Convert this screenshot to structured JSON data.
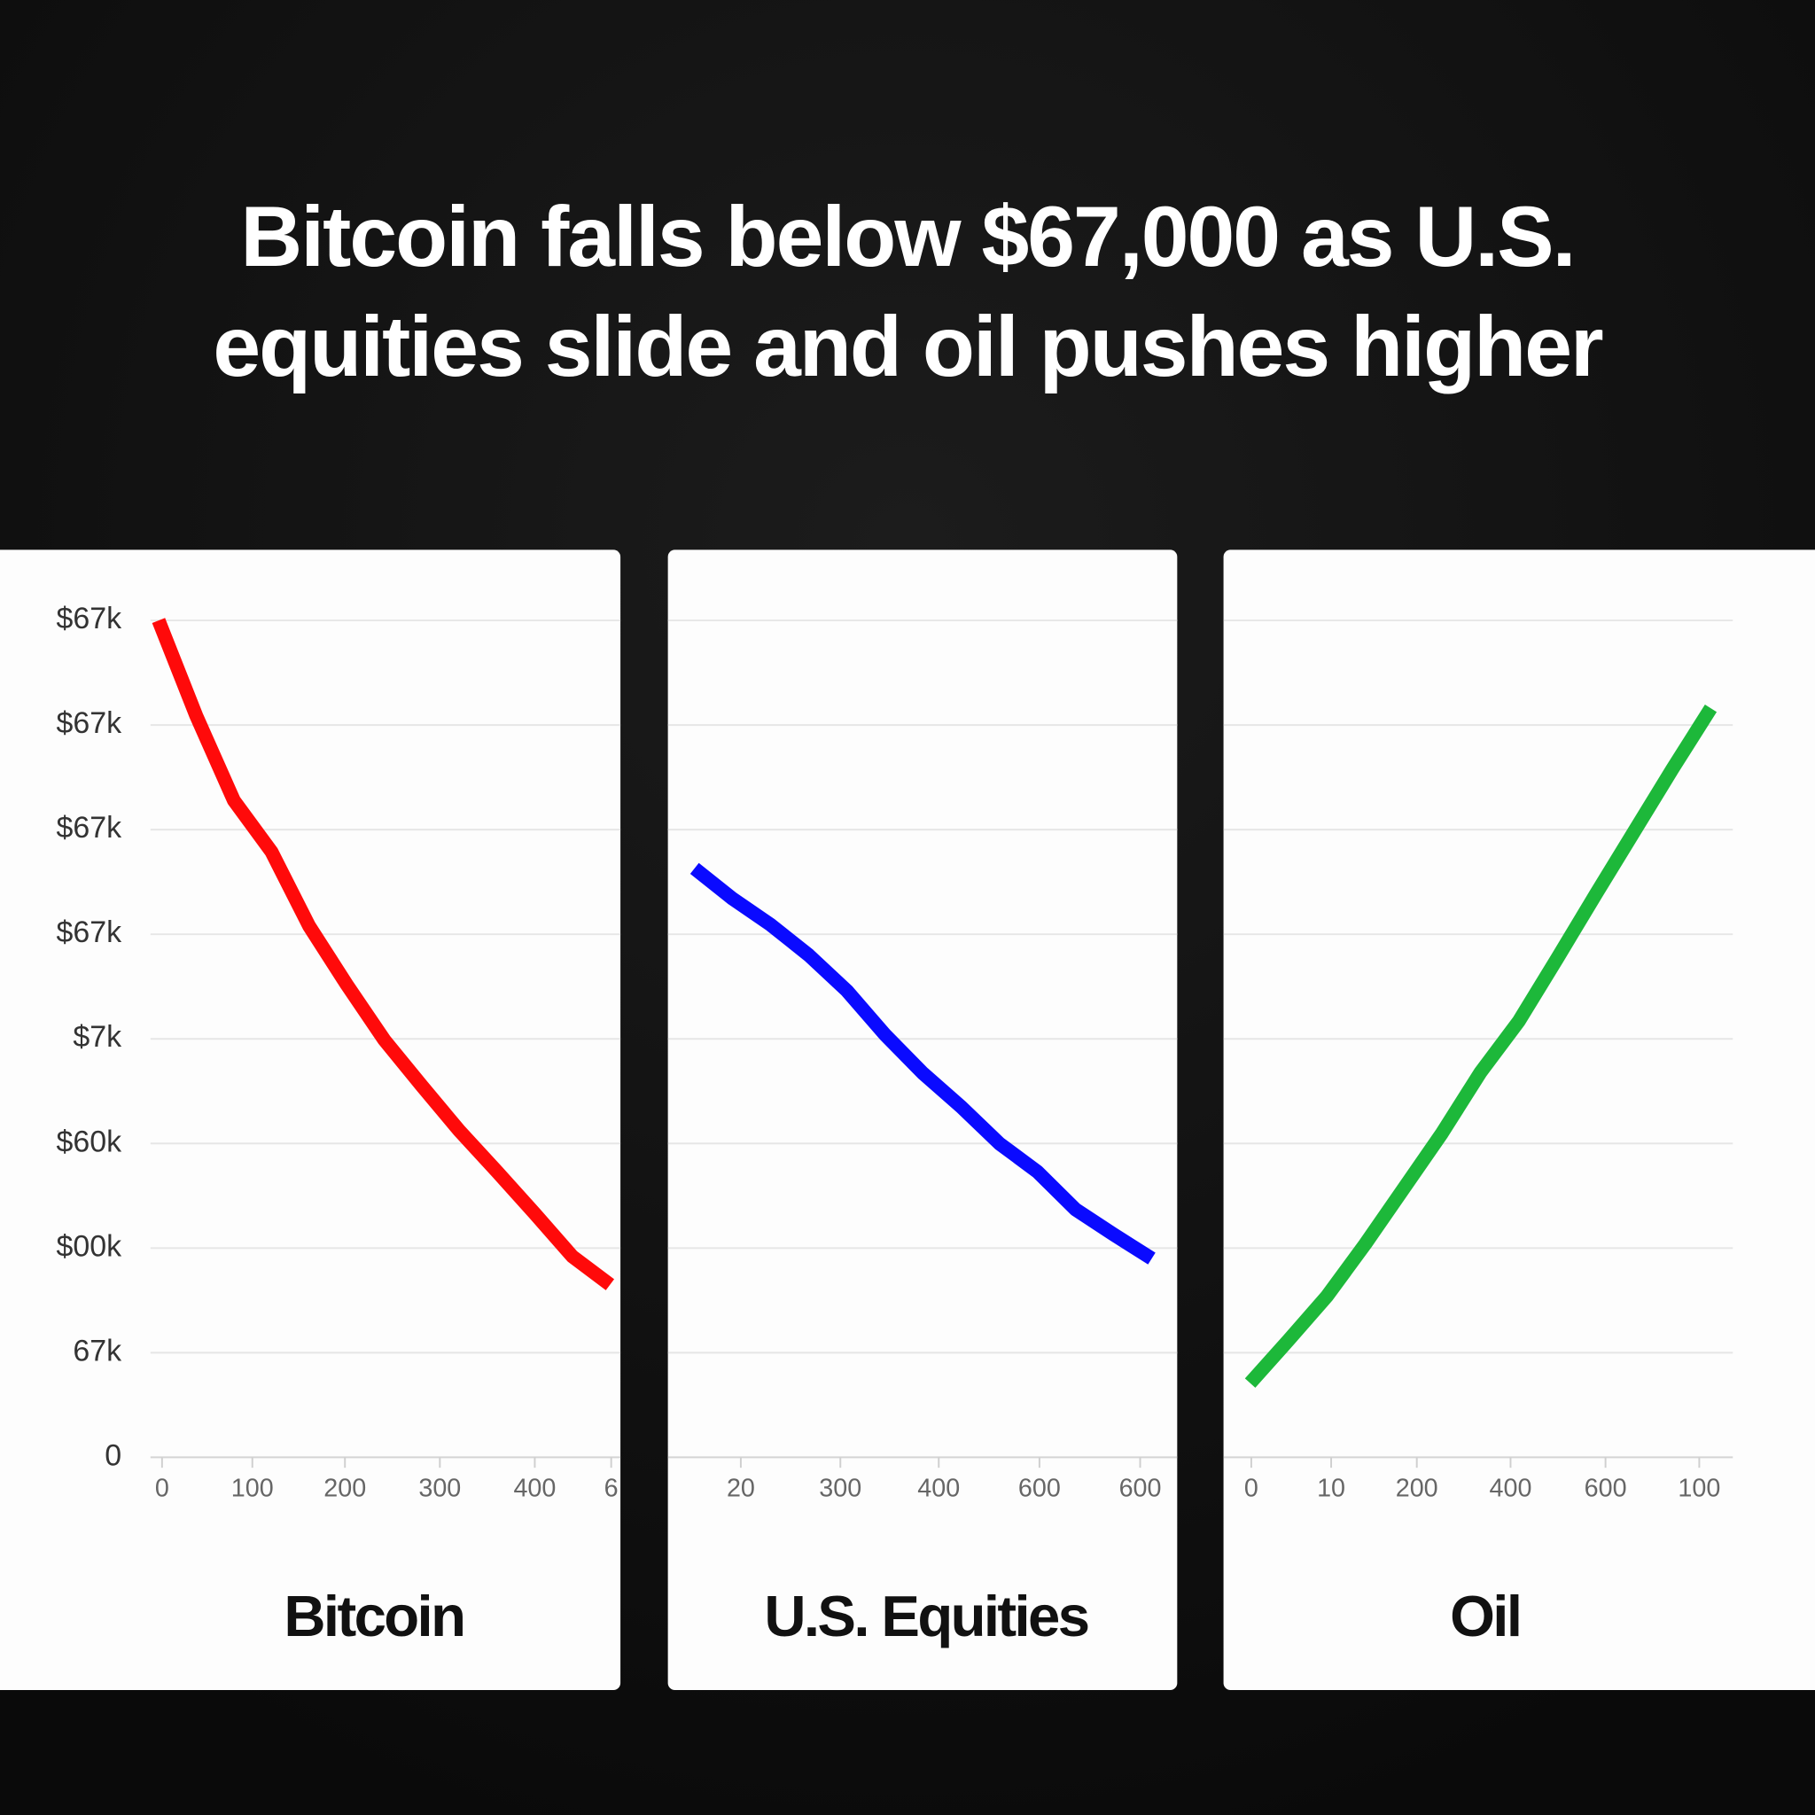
{
  "title": [
    "Bitcoin falls below $67,000 as U.S.",
    "equities slide and oil pushes higher"
  ],
  "chart_data": [
    {
      "type": "line",
      "label": "Bitcoin",
      "color": "#ff0a0a",
      "values": [
        8.0,
        7.09,
        6.28,
        5.79,
        5.08,
        4.52,
        3.99,
        3.55,
        3.12,
        2.73,
        2.33,
        1.92,
        1.65
      ],
      "ylim": [
        0,
        8
      ],
      "yticks": [
        0,
        {
          "value": 1,
          "label": "67k"
        },
        {
          "value": 2,
          "label": "$00k"
        },
        {
          "value": 3,
          "label": "$60k"
        },
        {
          "value": 4,
          "label": "$7k"
        },
        {
          "value": 5,
          "label": "$67k"
        },
        {
          "value": 6,
          "label": "$67k"
        },
        {
          "value": 7,
          "label": "$67k"
        },
        {
          "value": 8,
          "label": "$67k"
        }
      ],
      "xtick_labels": [
        "0",
        "100",
        "200",
        "300",
        "400",
        "6"
      ],
      "grid": true
    },
    {
      "type": "line",
      "label": "U.S. Equities",
      "color": "#0a0aff",
      "values": [
        5.63,
        5.34,
        5.09,
        4.8,
        4.46,
        4.04,
        3.67,
        3.35,
        3.0,
        2.73,
        2.37,
        2.13,
        1.9
      ],
      "ylim": [
        0,
        8
      ],
      "yticks": [
        0,
        1,
        2,
        3,
        4,
        5,
        6,
        7,
        8
      ],
      "show_ytick_labels": false,
      "xtick_labels": [
        "20",
        "300",
        "400",
        "600",
        "600"
      ],
      "grid": true
    },
    {
      "type": "line",
      "label": "Oil",
      "color": "#1db83a",
      "values": [
        0.71,
        1.12,
        1.54,
        2.04,
        2.57,
        3.1,
        3.68,
        4.17,
        4.77,
        5.38,
        5.98,
        6.58,
        7.16
      ],
      "ylim": [
        0,
        8
      ],
      "yticks": [
        0,
        1,
        2,
        3,
        4,
        5,
        6,
        7,
        8
      ],
      "show_ytick_labels": false,
      "xtick_labels": [
        "0",
        "10",
        "200",
        "400",
        "600",
        "100"
      ],
      "grid": true
    }
  ]
}
